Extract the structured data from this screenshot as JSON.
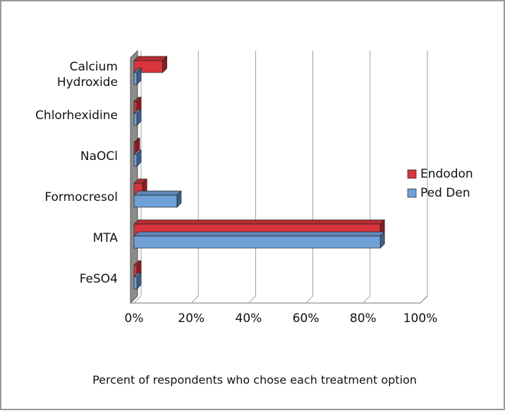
{
  "chart_data": {
    "type": "bar3d_horizontal",
    "title": "Percent of respondents who chose each treatment option",
    "categories": [
      "Calcium Hydroxide",
      "Chlorhexidine",
      "NaOCl",
      "Formocresol",
      "MTA",
      "FeSO4"
    ],
    "series": [
      {
        "name": "Endodon",
        "color": "#d9343b",
        "values": [
          10,
          1,
          0.5,
          3,
          86,
          1
        ]
      },
      {
        "name": "Ped Den",
        "color": "#6fa0d8",
        "values": [
          1,
          1,
          1,
          15,
          86,
          1
        ]
      }
    ],
    "xlim": [
      0,
      100
    ],
    "xticks": [
      {
        "value": 0,
        "label": "0%"
      },
      {
        "value": 20,
        "label": "20%"
      },
      {
        "value": 40,
        "label": "40%"
      },
      {
        "value": 60,
        "label": "60%"
      },
      {
        "value": 80,
        "label": "80%"
      },
      {
        "value": 100,
        "label": "100%"
      }
    ],
    "grid": true,
    "legend": "right"
  }
}
